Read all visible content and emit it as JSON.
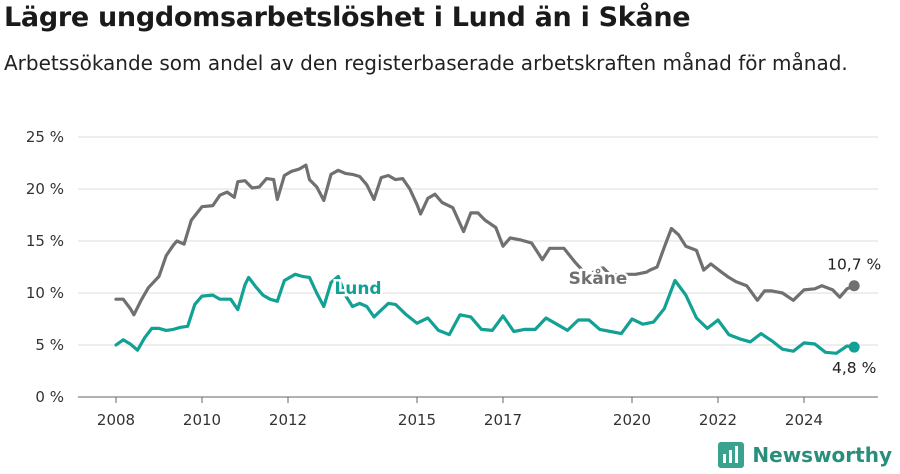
{
  "title": "Lägre ungdomsarbetslöshet i Lund än i Skåne",
  "subtitle": "Arbetssökande som andel av den registerbaserade arbetskraften månad för månad.",
  "brand": "Newsworthy",
  "colors": {
    "lund": "#12a194",
    "skane": "#707070",
    "grid": "#dddddd",
    "axis": "#666666"
  },
  "chart_data": {
    "type": "line",
    "title": "Lägre ungdomsarbetslöshet i Lund än i Skåne",
    "subtitle": "Arbetssökande som andel av den registerbaserade arbetskraften månad för månad.",
    "xlabel": "",
    "ylabel": "",
    "x_ticks": [
      "2008",
      "2010",
      "2012",
      "2015",
      "2017",
      "2020",
      "2022",
      "2024"
    ],
    "y_ticks": [
      "0 %",
      "5 %",
      "10 %",
      "15 %",
      "20 %",
      "25 %"
    ],
    "ylim": [
      0,
      25
    ],
    "xlim": [
      "2008-01",
      "2024-12"
    ],
    "grid": true,
    "legend": "inline labels",
    "series": [
      {
        "name": "Skåne",
        "color": "#707070",
        "end_label": "10,7 %",
        "points": [
          [
            "2008-01",
            9.4
          ],
          [
            "2008-03",
            9.4
          ],
          [
            "2008-05",
            8.5
          ],
          [
            "2008-06",
            7.9
          ],
          [
            "2008-08",
            9.3
          ],
          [
            "2008-10",
            10.5
          ],
          [
            "2009-01",
            11.6
          ],
          [
            "2009-03",
            13.6
          ],
          [
            "2009-05",
            14.6
          ],
          [
            "2009-06",
            15.0
          ],
          [
            "2009-08",
            14.7
          ],
          [
            "2009-10",
            17.0
          ],
          [
            "2010-01",
            18.3
          ],
          [
            "2010-04",
            18.4
          ],
          [
            "2010-06",
            19.4
          ],
          [
            "2010-08",
            19.7
          ],
          [
            "2010-10",
            19.2
          ],
          [
            "2010-11",
            20.7
          ],
          [
            "2011-01",
            20.8
          ],
          [
            "2011-03",
            20.1
          ],
          [
            "2011-05",
            20.2
          ],
          [
            "2011-07",
            21.0
          ],
          [
            "2011-09",
            20.9
          ],
          [
            "2011-10",
            19.0
          ],
          [
            "2011-12",
            21.3
          ],
          [
            "2012-02",
            21.7
          ],
          [
            "2012-04",
            21.9
          ],
          [
            "2012-06",
            22.3
          ],
          [
            "2012-07",
            20.9
          ],
          [
            "2012-09",
            20.2
          ],
          [
            "2012-11",
            18.9
          ],
          [
            "2013-01",
            21.4
          ],
          [
            "2013-03",
            21.8
          ],
          [
            "2013-05",
            21.5
          ],
          [
            "2013-07",
            21.4
          ],
          [
            "2013-09",
            21.2
          ],
          [
            "2013-11",
            20.4
          ],
          [
            "2014-01",
            19.0
          ],
          [
            "2014-03",
            21.1
          ],
          [
            "2014-05",
            21.3
          ],
          [
            "2014-07",
            20.9
          ],
          [
            "2014-09",
            21.0
          ],
          [
            "2014-11",
            20.0
          ],
          [
            "2015-01",
            18.5
          ],
          [
            "2015-02",
            17.6
          ],
          [
            "2015-04",
            19.1
          ],
          [
            "2015-06",
            19.5
          ],
          [
            "2015-08",
            18.7
          ],
          [
            "2015-11",
            18.2
          ],
          [
            "2016-02",
            15.9
          ],
          [
            "2016-04",
            17.7
          ],
          [
            "2016-06",
            17.7
          ],
          [
            "2016-08",
            17.0
          ],
          [
            "2016-11",
            16.3
          ],
          [
            "2017-01",
            14.5
          ],
          [
            "2017-03",
            15.3
          ],
          [
            "2017-06",
            15.1
          ],
          [
            "2017-09",
            14.8
          ],
          [
            "2017-12",
            13.2
          ],
          [
            "2018-02",
            14.3
          ],
          [
            "2018-06",
            14.3
          ],
          [
            "2018-09",
            13.0
          ],
          [
            "2019-01",
            11.5
          ],
          [
            "2019-03",
            12.3
          ],
          [
            "2019-05",
            12.4
          ],
          [
            "2019-07",
            11.7
          ],
          [
            "2019-10",
            11.8
          ],
          [
            "2020-02",
            11.8
          ],
          [
            "2020-05",
            12.0
          ],
          [
            "2020-06",
            12.2
          ],
          [
            "2020-08",
            12.5
          ],
          [
            "2020-10",
            14.4
          ],
          [
            "2020-12",
            16.2
          ],
          [
            "2021-02",
            15.6
          ],
          [
            "2021-04",
            14.5
          ],
          [
            "2021-07",
            14.1
          ],
          [
            "2021-09",
            12.2
          ],
          [
            "2021-11",
            12.8
          ],
          [
            "2022-02",
            12.0
          ],
          [
            "2022-04",
            11.5
          ],
          [
            "2022-06",
            11.1
          ],
          [
            "2022-09",
            10.7
          ],
          [
            "2022-12",
            9.3
          ],
          [
            "2023-02",
            10.2
          ],
          [
            "2023-04",
            10.2
          ],
          [
            "2023-07",
            10.0
          ],
          [
            "2023-10",
            9.3
          ],
          [
            "2024-01",
            10.3
          ],
          [
            "2024-04",
            10.4
          ],
          [
            "2024-06",
            10.7
          ],
          [
            "2024-09",
            10.3
          ],
          [
            "2024-11",
            9.6
          ],
          [
            "2025-01",
            10.4
          ],
          [
            "2025-03",
            10.7
          ]
        ]
      },
      {
        "name": "Lund",
        "color": "#12a194",
        "end_label": "4,8 %",
        "points": [
          [
            "2008-01",
            5.0
          ],
          [
            "2008-03",
            5.5
          ],
          [
            "2008-05",
            5.1
          ],
          [
            "2008-07",
            4.5
          ],
          [
            "2008-09",
            5.7
          ],
          [
            "2008-11",
            6.6
          ],
          [
            "2009-01",
            6.6
          ],
          [
            "2009-03",
            6.4
          ],
          [
            "2009-05",
            6.5
          ],
          [
            "2009-07",
            6.7
          ],
          [
            "2009-09",
            6.8
          ],
          [
            "2009-11",
            8.9
          ],
          [
            "2010-01",
            9.7
          ],
          [
            "2010-04",
            9.8
          ],
          [
            "2010-06",
            9.4
          ],
          [
            "2010-09",
            9.4
          ],
          [
            "2010-11",
            8.4
          ],
          [
            "2011-01",
            10.8
          ],
          [
            "2011-02",
            11.5
          ],
          [
            "2011-04",
            10.6
          ],
          [
            "2011-06",
            9.8
          ],
          [
            "2011-08",
            9.4
          ],
          [
            "2011-10",
            9.2
          ],
          [
            "2011-12",
            11.2
          ],
          [
            "2012-03",
            11.8
          ],
          [
            "2012-05",
            11.6
          ],
          [
            "2012-07",
            11.5
          ],
          [
            "2012-09",
            10.0
          ],
          [
            "2012-11",
            8.7
          ],
          [
            "2013-01",
            11.0
          ],
          [
            "2013-03",
            11.6
          ],
          [
            "2013-05",
            9.8
          ],
          [
            "2013-07",
            8.7
          ],
          [
            "2013-09",
            9.0
          ],
          [
            "2013-11",
            8.7
          ],
          [
            "2014-01",
            7.7
          ],
          [
            "2014-05",
            9.0
          ],
          [
            "2014-07",
            8.9
          ],
          [
            "2014-10",
            7.9
          ],
          [
            "2015-01",
            7.1
          ],
          [
            "2015-04",
            7.6
          ],
          [
            "2015-07",
            6.4
          ],
          [
            "2015-10",
            6.0
          ],
          [
            "2016-01",
            7.9
          ],
          [
            "2016-04",
            7.7
          ],
          [
            "2016-07",
            6.5
          ],
          [
            "2016-10",
            6.4
          ],
          [
            "2017-01",
            7.8
          ],
          [
            "2017-04",
            6.3
          ],
          [
            "2017-07",
            6.5
          ],
          [
            "2017-10",
            6.5
          ],
          [
            "2018-01",
            7.6
          ],
          [
            "2018-04",
            7.0
          ],
          [
            "2018-07",
            6.4
          ],
          [
            "2018-10",
            7.4
          ],
          [
            "2019-01",
            7.4
          ],
          [
            "2019-04",
            6.5
          ],
          [
            "2019-07",
            6.3
          ],
          [
            "2019-10",
            6.1
          ],
          [
            "2020-01",
            7.5
          ],
          [
            "2020-04",
            7.0
          ],
          [
            "2020-07",
            7.2
          ],
          [
            "2020-10",
            8.5
          ],
          [
            "2021-01",
            11.2
          ],
          [
            "2021-04",
            9.8
          ],
          [
            "2021-07",
            7.6
          ],
          [
            "2021-10",
            6.6
          ],
          [
            "2022-01",
            7.4
          ],
          [
            "2022-04",
            6.0
          ],
          [
            "2022-07",
            5.6
          ],
          [
            "2022-10",
            5.3
          ],
          [
            "2023-01",
            6.1
          ],
          [
            "2023-04",
            5.4
          ],
          [
            "2023-07",
            4.6
          ],
          [
            "2023-10",
            4.4
          ],
          [
            "2024-01",
            5.2
          ],
          [
            "2024-04",
            5.1
          ],
          [
            "2024-07",
            4.3
          ],
          [
            "2024-10",
            4.2
          ],
          [
            "2025-01",
            4.9
          ],
          [
            "2025-03",
            4.8
          ]
        ]
      }
    ]
  }
}
